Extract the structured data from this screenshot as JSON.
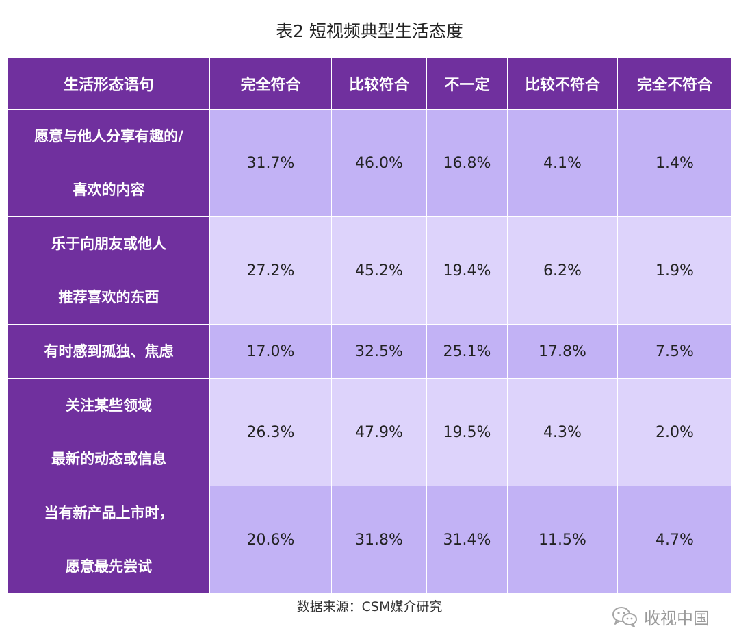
{
  "title": "表2  短视频典型生活态度",
  "table": {
    "headers": [
      "生活形态语句",
      "完全符合",
      "比较符合",
      "不一定",
      "比较不符合",
      "完全不符合"
    ],
    "rows": [
      {
        "label_lines": [
          "愿意与他人分享有趣的/",
          "喜欢的内容"
        ],
        "values": [
          "31.7%",
          "46.0%",
          "16.8%",
          "4.1%",
          "1.4%"
        ]
      },
      {
        "label_lines": [
          "乐于向朋友或他人",
          "推荐喜欢的东西"
        ],
        "values": [
          "27.2%",
          "45.2%",
          "19.4%",
          "6.2%",
          "1.9%"
        ]
      },
      {
        "label_lines": [
          "有时感到孤独、焦虑"
        ],
        "values": [
          "17.0%",
          "32.5%",
          "25.1%",
          "17.8%",
          "7.5%"
        ]
      },
      {
        "label_lines": [
          "关注某些领域",
          "最新的动态或信息"
        ],
        "values": [
          "26.3%",
          "47.9%",
          "19.5%",
          "4.3%",
          "2.0%"
        ]
      },
      {
        "label_lines": [
          "当有新产品上市时，",
          "愿意最先尝试"
        ],
        "values": [
          "20.6%",
          "31.8%",
          "31.4%",
          "11.5%",
          "4.7%"
        ]
      }
    ]
  },
  "source": "数据来源：CSM媒介研究",
  "watermark": {
    "icon": "wechat-icon",
    "text": "收视中国"
  },
  "colors": {
    "header_purple": "#70309e",
    "row_dark": "#c2b2f5",
    "row_light": "#ddd3fb"
  }
}
